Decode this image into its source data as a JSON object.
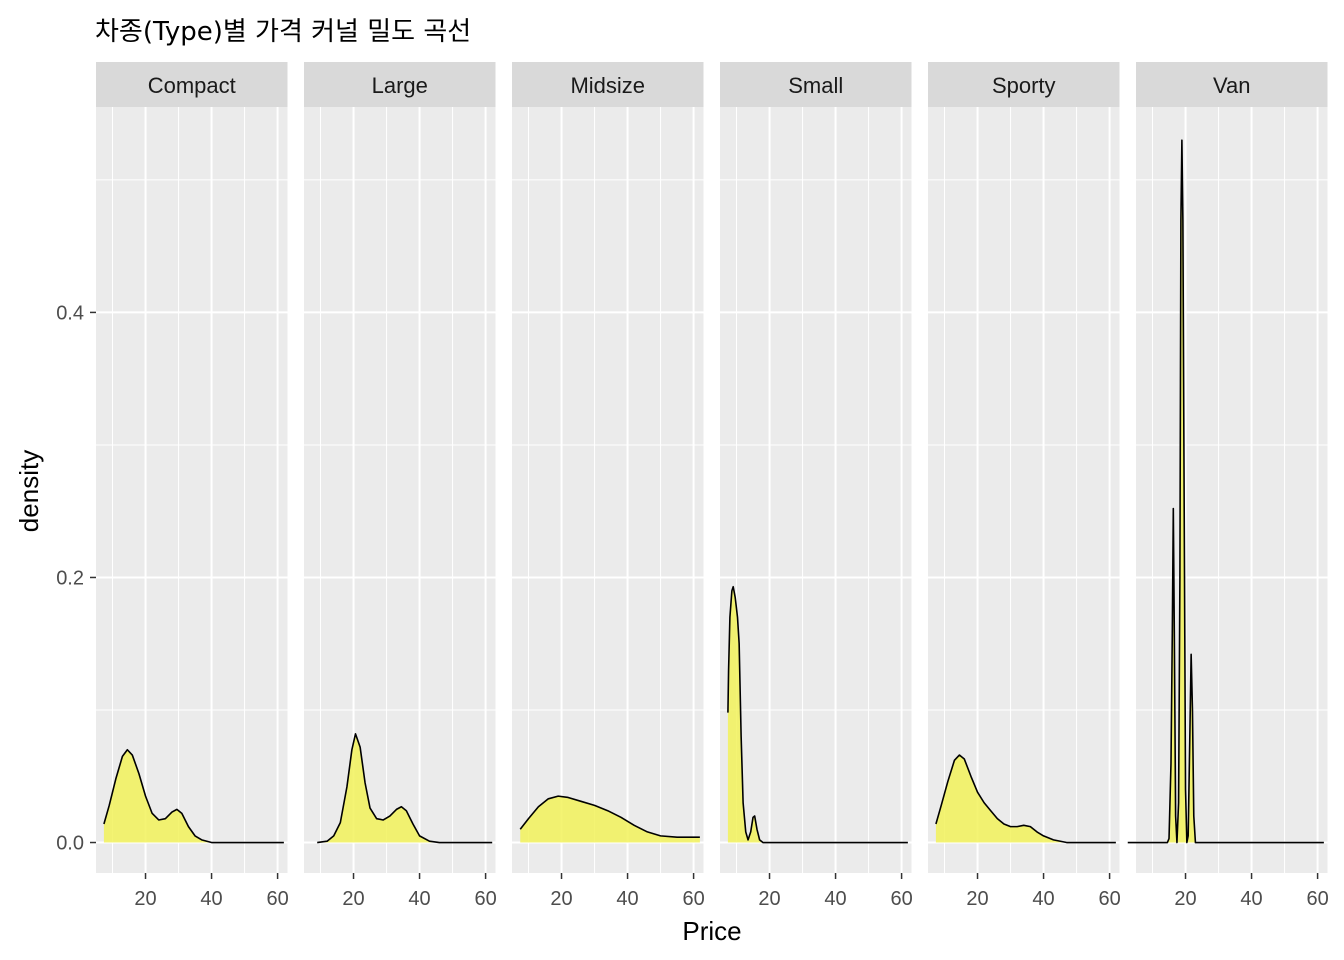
{
  "chart_data": {
    "type": "area",
    "title": "차종(Type)별 가격 커널 밀도 곡선",
    "xlabel": "Price",
    "ylabel": "density",
    "xlim": [
      5,
      63
    ],
    "ylim": [
      -0.023,
      0.555
    ],
    "x_ticks": [
      20,
      40,
      60
    ],
    "y_ticks": [
      0.0,
      0.2,
      0.4
    ],
    "y_tick_labels": [
      "0.0",
      "0.2",
      "0.4"
    ],
    "facet_by": "Type",
    "fill_color": "#f2f25a",
    "line_color": "#000000",
    "panel_background": "#ebebeb",
    "strip_background": "#d9d9d9",
    "grid": true,
    "panels": [
      {
        "name": "Compact",
        "points": [
          [
            7.4,
            0.014
          ],
          [
            9,
            0.028
          ],
          [
            11,
            0.048
          ],
          [
            13,
            0.065
          ],
          [
            14.5,
            0.07
          ],
          [
            16,
            0.066
          ],
          [
            18,
            0.052
          ],
          [
            20,
            0.035
          ],
          [
            22,
            0.022
          ],
          [
            24,
            0.017
          ],
          [
            26,
            0.018
          ],
          [
            28,
            0.023
          ],
          [
            29.5,
            0.025
          ],
          [
            31,
            0.022
          ],
          [
            33,
            0.012
          ],
          [
            35,
            0.005
          ],
          [
            37,
            0.002
          ],
          [
            40,
            0.0
          ],
          [
            61.9,
            0.0
          ]
        ]
      },
      {
        "name": "Large",
        "points": [
          [
            9,
            0.0
          ],
          [
            12,
            0.001
          ],
          [
            14,
            0.005
          ],
          [
            16,
            0.015
          ],
          [
            18,
            0.042
          ],
          [
            19.5,
            0.07
          ],
          [
            20.6,
            0.082
          ],
          [
            22,
            0.072
          ],
          [
            23.5,
            0.045
          ],
          [
            25,
            0.026
          ],
          [
            27,
            0.018
          ],
          [
            29,
            0.017
          ],
          [
            31,
            0.02
          ],
          [
            33,
            0.025
          ],
          [
            34.5,
            0.027
          ],
          [
            36,
            0.024
          ],
          [
            38,
            0.014
          ],
          [
            40,
            0.005
          ],
          [
            43,
            0.001
          ],
          [
            46,
            0.0
          ],
          [
            62,
            0.0
          ]
        ]
      },
      {
        "name": "Midsize",
        "points": [
          [
            7.5,
            0.01
          ],
          [
            10,
            0.018
          ],
          [
            13,
            0.027
          ],
          [
            16,
            0.033
          ],
          [
            19,
            0.035
          ],
          [
            22,
            0.034
          ],
          [
            26,
            0.031
          ],
          [
            30,
            0.028
          ],
          [
            34,
            0.024
          ],
          [
            38,
            0.019
          ],
          [
            42,
            0.013
          ],
          [
            46,
            0.008
          ],
          [
            50,
            0.005
          ],
          [
            55,
            0.004
          ],
          [
            61.9,
            0.004
          ]
        ]
      },
      {
        "name": "Small",
        "points": [
          [
            7.4,
            0.098
          ],
          [
            7.6,
            0.13
          ],
          [
            8,
            0.17
          ],
          [
            8.6,
            0.19
          ],
          [
            9,
            0.193
          ],
          [
            9.6,
            0.185
          ],
          [
            10.3,
            0.17
          ],
          [
            10.8,
            0.15
          ],
          [
            11.4,
            0.08
          ],
          [
            12,
            0.03
          ],
          [
            12.8,
            0.008
          ],
          [
            13.5,
            0.002
          ],
          [
            14.3,
            0.008
          ],
          [
            15,
            0.019
          ],
          [
            15.5,
            0.02
          ],
          [
            16.2,
            0.01
          ],
          [
            17,
            0.002
          ],
          [
            18,
            0.0
          ],
          [
            61.9,
            0.0
          ]
        ]
      },
      {
        "name": "Sporty",
        "points": [
          [
            7.4,
            0.014
          ],
          [
            9,
            0.028
          ],
          [
            11,
            0.046
          ],
          [
            13,
            0.062
          ],
          [
            14.5,
            0.066
          ],
          [
            16,
            0.063
          ],
          [
            18,
            0.05
          ],
          [
            20,
            0.038
          ],
          [
            22,
            0.03
          ],
          [
            24,
            0.024
          ],
          [
            26,
            0.018
          ],
          [
            28,
            0.014
          ],
          [
            30,
            0.012
          ],
          [
            32,
            0.012
          ],
          [
            34,
            0.013
          ],
          [
            36,
            0.012
          ],
          [
            38,
            0.008
          ],
          [
            40,
            0.005
          ],
          [
            43,
            0.002
          ],
          [
            47,
            0.0
          ],
          [
            61.9,
            0.0
          ]
        ]
      },
      {
        "name": "Van",
        "points": [
          [
            2.5,
            0.0
          ],
          [
            14.5,
            0.0
          ],
          [
            15,
            0.003
          ],
          [
            15.6,
            0.06
          ],
          [
            16,
            0.16
          ],
          [
            16.3,
            0.252
          ],
          [
            16.6,
            0.16
          ],
          [
            17,
            0.02
          ],
          [
            17.4,
            0.0
          ],
          [
            17.9,
            0.03
          ],
          [
            18.3,
            0.2
          ],
          [
            18.6,
            0.47
          ],
          [
            18.9,
            0.53
          ],
          [
            19.2,
            0.47
          ],
          [
            19.6,
            0.25
          ],
          [
            20,
            0.04
          ],
          [
            20.4,
            0.0
          ],
          [
            20.8,
            0.005
          ],
          [
            21.3,
            0.08
          ],
          [
            21.7,
            0.142
          ],
          [
            22.1,
            0.1
          ],
          [
            22.5,
            0.02
          ],
          [
            23,
            0.0
          ],
          [
            61.9,
            0.0
          ]
        ]
      }
    ]
  }
}
